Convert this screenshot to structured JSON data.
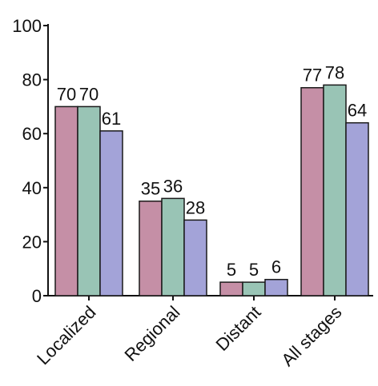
{
  "chart_data": {
    "type": "bar",
    "categories": [
      "Localized",
      "Regional",
      "Distant",
      "All stages"
    ],
    "series": [
      {
        "values": [
          70,
          35,
          5,
          77
        ],
        "color": "#c58fa6"
      },
      {
        "values": [
          70,
          36,
          5,
          78
        ],
        "color": "#99c4b5"
      },
      {
        "values": [
          61,
          28,
          6,
          64
        ],
        "color": "#a3a3d8"
      }
    ],
    "ylim": [
      0,
      100
    ],
    "yticks": [
      0,
      20,
      40,
      60,
      80,
      100
    ],
    "ytick_labels": [
      "0",
      "20",
      "40",
      "60",
      "80",
      "100"
    ],
    "grid": false,
    "legend": "none",
    "title": "",
    "xlabel": "",
    "ylabel": ""
  }
}
